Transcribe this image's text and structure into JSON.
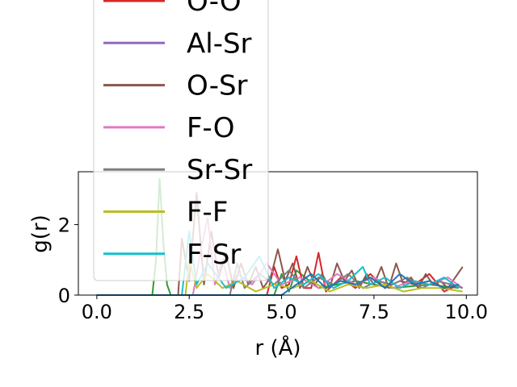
{
  "chart_data": {
    "type": "line",
    "xlabel": "r (Å)",
    "ylabel": "g(r)",
    "xlim": [
      -0.5,
      10.3
    ],
    "ylim": [
      0,
      3.5
    ],
    "x_ticks": [
      "0.0",
      "2.5",
      "5.0",
      "7.5",
      "10.0"
    ],
    "y_ticks": [
      "0",
      "2"
    ],
    "legend_placement": "upper-left",
    "legend": [
      {
        "name": "O-O",
        "color": "#d62728"
      },
      {
        "name": "Al-Sr",
        "color": "#9467bd"
      },
      {
        "name": "O-Sr",
        "color": "#8c564b"
      },
      {
        "name": "F-O",
        "color": "#e377c2"
      },
      {
        "name": "Sr-Sr",
        "color": "#7f7f7f"
      },
      {
        "name": "F-F",
        "color": "#bcbd22"
      },
      {
        "name": "F-Sr",
        "color": "#17becf"
      }
    ],
    "series": [
      {
        "color": "#2ca02c",
        "x": [
          0,
          1.5,
          1.6,
          1.7,
          1.8,
          1.9,
          2.0,
          4.8,
          5.0,
          5.2,
          5.4,
          6.0,
          7.0,
          8.0,
          9.0,
          9.8
        ],
        "y": [
          0,
          0,
          1.0,
          3.3,
          1.5,
          0.3,
          0,
          0,
          0.6,
          0.1,
          0.7,
          0.2,
          0.4,
          0.2,
          0.3,
          0.2
        ]
      },
      {
        "color": "#d62728",
        "x": [
          0,
          4.6,
          4.8,
          5.0,
          5.2,
          5.4,
          5.6,
          5.8,
          6.0,
          6.2,
          6.6,
          7.0,
          7.4,
          7.8,
          8.2,
          8.6,
          9.0,
          9.4,
          9.8
        ],
        "y": [
          0,
          0,
          0.8,
          0.2,
          0.3,
          1.1,
          0.2,
          0.2,
          1.2,
          0.1,
          0.5,
          0.2,
          0.6,
          0.2,
          0.4,
          0.3,
          0.6,
          0.1,
          0.3
        ]
      },
      {
        "color": "#8c564b",
        "x": [
          0,
          2.2,
          2.3,
          2.5,
          2.7,
          2.9,
          3.1,
          3.3,
          3.5,
          3.7,
          3.9,
          4.1,
          4.3,
          4.5,
          4.7,
          4.9,
          5.1,
          5.3,
          5.5,
          5.7,
          5.9,
          6.1,
          6.3,
          6.5,
          6.7,
          6.9,
          7.1,
          7.3,
          7.5,
          7.7,
          7.9,
          8.1,
          8.3,
          8.5,
          8.7,
          8.9,
          9.1,
          9.3,
          9.5,
          9.7,
          9.9
        ],
        "y": [
          0,
          0,
          1.6,
          0.4,
          2.9,
          0.3,
          1.8,
          0.5,
          1.2,
          0.2,
          0.9,
          0.3,
          0.8,
          0.2,
          0.5,
          1.3,
          0.4,
          0.9,
          0.2,
          0.8,
          0.3,
          0.6,
          0.2,
          0.9,
          0.4,
          0.7,
          0.2,
          0.6,
          0.3,
          0.8,
          0.2,
          0.9,
          0.3,
          0.5,
          0.2,
          0.6,
          0.3,
          0.4,
          0.2,
          0.5,
          0.8
        ]
      },
      {
        "color": "#e377c2",
        "x": [
          0,
          2.6,
          2.8,
          3.0,
          3.2,
          3.4,
          3.6,
          3.8,
          4.2,
          4.6,
          5.0,
          5.5,
          6.0,
          6.5,
          7.0,
          7.5,
          8.0,
          8.5,
          9.0,
          9.5,
          9.9
        ],
        "y": [
          0,
          0,
          1.2,
          2.2,
          0.3,
          1.0,
          0.2,
          0.6,
          0.3,
          0.9,
          0.3,
          0.5,
          0.2,
          0.6,
          0.3,
          0.5,
          0.2,
          0.4,
          0.3,
          0.5,
          0.2
        ]
      },
      {
        "color": "#7f7f7f",
        "x": [
          0,
          3.6,
          3.8,
          4.0,
          4.4,
          4.8,
          5.2,
          5.6,
          6.0,
          6.4,
          6.8,
          7.2,
          7.6,
          8.0,
          8.4,
          8.8,
          9.2,
          9.6,
          9.9
        ],
        "y": [
          0,
          0,
          0.9,
          0.2,
          0.6,
          0.3,
          0.7,
          0.2,
          0.5,
          0.3,
          0.6,
          0.2,
          0.4,
          0.3,
          0.5,
          0.2,
          0.4,
          0.3,
          0.2
        ]
      },
      {
        "color": "#bcbd22",
        "x": [
          0,
          2.4,
          2.5,
          2.7,
          3.0,
          3.4,
          3.8,
          4.3,
          4.8,
          5.3,
          5.8,
          6.3,
          6.8,
          7.3,
          7.8,
          8.3,
          8.8,
          9.3,
          9.9
        ],
        "y": [
          0,
          0,
          1.0,
          0.2,
          0.6,
          0.2,
          0.4,
          0.1,
          0.3,
          0.2,
          0.4,
          0.1,
          0.3,
          0.2,
          0.3,
          0.1,
          0.2,
          0.2,
          0.1
        ]
      },
      {
        "color": "#17becf",
        "x": [
          0,
          2.3,
          2.5,
          2.7,
          3.0,
          3.5,
          4.0,
          4.4,
          4.8,
          5.2,
          5.6,
          6.0,
          6.4,
          6.8,
          7.2,
          7.4,
          7.8,
          8.2,
          8.6,
          9.0,
          9.4,
          9.8
        ],
        "y": [
          0,
          0,
          1.8,
          0.3,
          0.9,
          0.2,
          0.5,
          1.1,
          0.2,
          0.5,
          0.3,
          0.6,
          0.2,
          0.4,
          0.8,
          0.3,
          0.5,
          0.2,
          0.4,
          0.3,
          0.5,
          0.2
        ]
      },
      {
        "color": "#1f77b4",
        "x": [
          0,
          5.0,
          5.4,
          5.8,
          6.2,
          6.6,
          7.0,
          7.4,
          7.8,
          8.2,
          8.6,
          9.0,
          9.4,
          9.8
        ],
        "y": [
          0,
          0,
          0.3,
          0.6,
          0.2,
          0.4,
          0.3,
          0.5,
          0.2,
          0.6,
          0.3,
          0.4,
          0.2,
          0.3
        ]
      }
    ]
  }
}
